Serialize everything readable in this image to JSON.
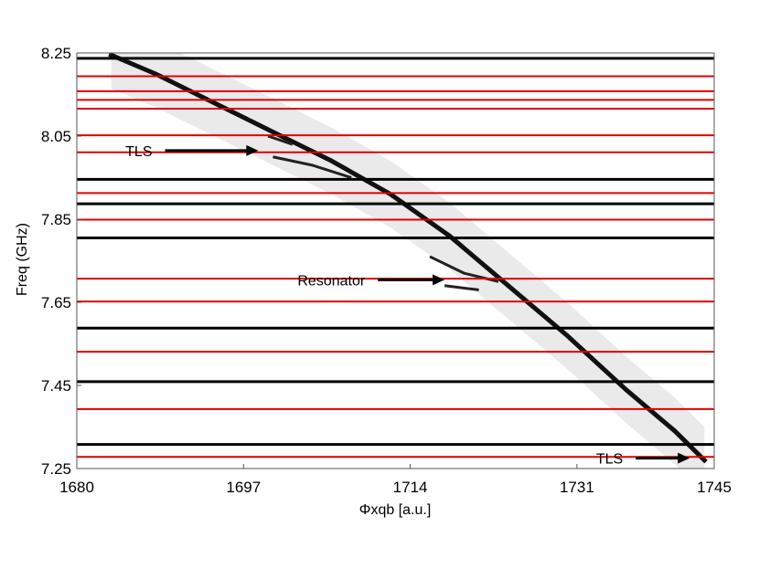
{
  "chart_data": {
    "type": "heatmap",
    "title": "",
    "xlabel": "Φxqb [a.u.]",
    "ylabel": "Freq (GHz)",
    "xlim": [
      1680,
      1745
    ],
    "ylim": [
      7.25,
      8.25
    ],
    "x_ticks": [
      {
        "value": 1680,
        "label": "1680"
      },
      {
        "value": 1697,
        "label": "1697"
      },
      {
        "value": 1714,
        "label": "1714"
      },
      {
        "value": 1731,
        "label": "1731"
      },
      {
        "value": 1745,
        "label": "1745"
      }
    ],
    "y_ticks": [
      {
        "value": 8.25,
        "label": "8.25"
      },
      {
        "value": 8.05,
        "label": "8.05"
      },
      {
        "value": 7.85,
        "label": "7.85"
      },
      {
        "value": 7.65,
        "label": "7.65"
      },
      {
        "value": 7.45,
        "label": "7.45"
      },
      {
        "value": 7.25,
        "label": "7.25"
      }
    ],
    "grid": false,
    "black_lines_ghz": [
      8.237,
      7.946,
      7.887,
      7.805,
      7.588,
      7.459,
      7.308
    ],
    "red_lines_ghz": [
      8.194,
      8.158,
      8.137,
      8.116,
      8.052,
      8.011,
      7.913,
      7.849,
      7.707,
      7.652,
      7.531,
      7.393,
      7.278
    ],
    "line_colors": {
      "black": "#000000",
      "red": "#e00000"
    },
    "main_trace": {
      "color": "#111111",
      "points": [
        [
          1683.5,
          8.245
        ],
        [
          1688,
          8.2
        ],
        [
          1694,
          8.13
        ],
        [
          1700,
          8.06
        ],
        [
          1706,
          7.99
        ],
        [
          1712,
          7.91
        ],
        [
          1718,
          7.81
        ],
        [
          1724,
          7.69
        ],
        [
          1730,
          7.57
        ],
        [
          1736,
          7.44
        ],
        [
          1741,
          7.34
        ],
        [
          1744,
          7.27
        ]
      ]
    },
    "avoided_crossing_branches": [
      {
        "points": [
          [
            1699.5,
            8.05
          ],
          [
            1702,
            8.03
          ]
        ]
      },
      {
        "points": [
          [
            1700,
            8.0
          ],
          [
            1704,
            7.98
          ],
          [
            1708,
            7.95
          ]
        ]
      },
      {
        "points": [
          [
            1716,
            7.76
          ],
          [
            1719.5,
            7.72
          ],
          [
            1723,
            7.7
          ]
        ]
      },
      {
        "points": [
          [
            1717.5,
            7.69
          ],
          [
            1721,
            7.68
          ]
        ]
      }
    ],
    "band": {
      "half_width_ghz": 0.08,
      "color": "#d8d8d8"
    },
    "annotations": [
      {
        "text": "TLS",
        "arrow_from": [
          1689.0,
          8.015
        ],
        "arrow_to": [
          1698.5,
          8.015
        ]
      },
      {
        "text": "Resonator",
        "arrow_from": [
          1710.7,
          7.704
        ],
        "arrow_to": [
          1717.5,
          7.704
        ]
      },
      {
        "text": "TLS",
        "arrow_from": [
          1737.0,
          7.275
        ],
        "arrow_to": [
          1742.5,
          7.275
        ]
      }
    ]
  }
}
